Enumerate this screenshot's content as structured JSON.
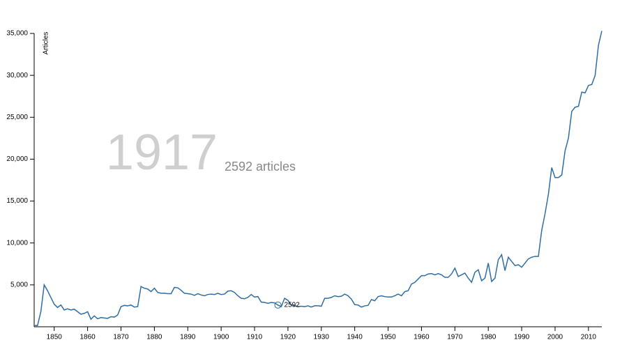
{
  "chart_data": {
    "type": "line",
    "y_label": "Articles",
    "color": "#2f6ea5",
    "x": [
      1844,
      1845,
      1846,
      1847,
      1848,
      1849,
      1850,
      1851,
      1852,
      1853,
      1854,
      1855,
      1856,
      1857,
      1858,
      1859,
      1860,
      1861,
      1862,
      1863,
      1864,
      1865,
      1866,
      1867,
      1868,
      1869,
      1870,
      1871,
      1872,
      1873,
      1874,
      1875,
      1876,
      1877,
      1878,
      1879,
      1880,
      1881,
      1882,
      1883,
      1884,
      1885,
      1886,
      1887,
      1888,
      1889,
      1890,
      1891,
      1892,
      1893,
      1894,
      1895,
      1896,
      1897,
      1898,
      1899,
      1900,
      1901,
      1902,
      1903,
      1904,
      1905,
      1906,
      1907,
      1908,
      1909,
      1910,
      1911,
      1912,
      1913,
      1914,
      1915,
      1916,
      1917,
      1918,
      1919,
      1920,
      1921,
      1922,
      1923,
      1924,
      1925,
      1926,
      1927,
      1928,
      1929,
      1930,
      1931,
      1932,
      1933,
      1934,
      1935,
      1936,
      1937,
      1938,
      1939,
      1940,
      1941,
      1942,
      1943,
      1944,
      1945,
      1946,
      1947,
      1948,
      1949,
      1950,
      1951,
      1952,
      1953,
      1954,
      1955,
      1956,
      1957,
      1958,
      1959,
      1960,
      1961,
      1962,
      1963,
      1964,
      1965,
      1966,
      1967,
      1968,
      1969,
      1970,
      1971,
      1972,
      1973,
      1974,
      1975,
      1976,
      1977,
      1978,
      1979,
      1980,
      1981,
      1982,
      1983,
      1984,
      1985,
      1986,
      1987,
      1988,
      1989,
      1990,
      1991,
      1992,
      1993,
      1994,
      1995,
      1996,
      1997,
      1998,
      1999,
      2000,
      2001,
      2002,
      2003,
      2004,
      2005,
      2006,
      2007,
      2008,
      2009,
      2010,
      2011,
      2012,
      2013,
      2014
    ],
    "values": [
      150,
      150,
      1800,
      5000,
      4300,
      3500,
      2700,
      2300,
      2600,
      2000,
      2150,
      2000,
      2100,
      1800,
      1500,
      1600,
      1800,
      900,
      1300,
      950,
      1100,
      1050,
      1000,
      1200,
      1150,
      1400,
      2400,
      2550,
      2500,
      2600,
      2350,
      2400,
      4800,
      4600,
      4500,
      4200,
      4600,
      4100,
      4000,
      4000,
      3950,
      3950,
      4700,
      4650,
      4350,
      4000,
      3950,
      3900,
      3750,
      3950,
      3800,
      3700,
      3850,
      3900,
      3850,
      4000,
      3850,
      3900,
      4250,
      4300,
      4100,
      3700,
      3400,
      3350,
      3500,
      3850,
      3550,
      3600,
      2950,
      2900,
      2800,
      2900,
      2850,
      2592,
      2400,
      3400,
      3150,
      2600,
      2500,
      2400,
      2450,
      2400,
      2500,
      2350,
      2500,
      2500,
      2450,
      3400,
      3400,
      3500,
      3700,
      3600,
      3650,
      3900,
      3700,
      3300,
      2650,
      2600,
      2350,
      2500,
      2550,
      3250,
      3100,
      3600,
      3700,
      3600,
      3550,
      3550,
      3700,
      3900,
      3700,
      4200,
      4300,
      5100,
      5300,
      5700,
      6100,
      6100,
      6300,
      6350,
      6200,
      6350,
      6200,
      5900,
      5900,
      6300,
      7000,
      6000,
      6200,
      6400,
      5800,
      5300,
      6500,
      6800,
      5500,
      5800,
      7600,
      5400,
      5800,
      8000,
      8600,
      6700,
      8300,
      7800,
      7300,
      7400,
      7100,
      7600,
      8100,
      8300,
      8400,
      8400,
      11500,
      13500,
      15800,
      19000,
      17800,
      17800,
      18100,
      21000,
      22500,
      25700,
      26200,
      26300,
      28000,
      27900,
      28800,
      28900,
      30000,
      33600,
      35300
    ],
    "xlim": [
      1844,
      2014
    ],
    "xticks": [
      1850,
      1860,
      1870,
      1880,
      1890,
      1900,
      1910,
      1920,
      1930,
      1940,
      1950,
      1960,
      1970,
      1980,
      1990,
      2000,
      2010
    ],
    "ylim": [
      0,
      35000
    ],
    "yticks": [
      {
        "value": 5000,
        "label": "5,000"
      },
      {
        "value": 10000,
        "label": "10,000"
      },
      {
        "value": 15000,
        "label": "15,000"
      },
      {
        "value": 20000,
        "label": "20,000"
      },
      {
        "value": 25000,
        "label": "25,000"
      },
      {
        "value": 30000,
        "label": "30,000"
      },
      {
        "value": 35000,
        "label": "35,000"
      }
    ],
    "annotation": {
      "year": 1917,
      "value": 2592,
      "value_label": "2592 articles"
    }
  }
}
